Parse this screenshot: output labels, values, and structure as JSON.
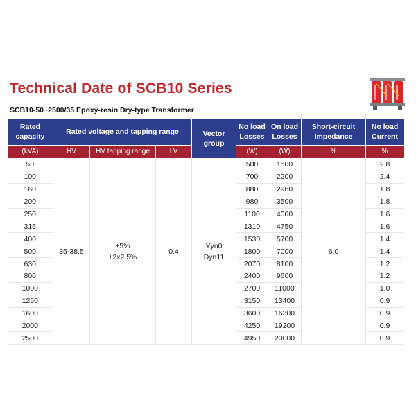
{
  "title": "Technical Date of SCB10 Series",
  "subtitle": "SCB10-50~2500/35  Epoxy-resin Dry-type Transformer",
  "product_image": "dry-type-transformer-image",
  "colors": {
    "title": "#c0262c",
    "header_blue": "#2d3f8c",
    "header_red": "#a52330"
  },
  "headers": {
    "rated_capacity": "Rated capacity",
    "rated_voltage": "Rated voltage and tapping range",
    "vector_group": "Vector group",
    "no_load_losses": "No load Losses",
    "on_load_losses": "On load Losses",
    "impedance": "Short-circuit Impedance",
    "no_load_current": "No load Current"
  },
  "units": {
    "capacity": "(kVA)",
    "hv": "HV",
    "hv_tapping": "HV tapping range",
    "lv": "LV",
    "no_load_losses": "(W)",
    "on_load_losses": "(W)",
    "impedance": "%",
    "current": "%"
  },
  "merged": {
    "hv": "35-38.5",
    "hv_tapping_1": "±5%",
    "hv_tapping_2": "±2x2.5%",
    "lv": "0.4",
    "vector_1": "Yyn0",
    "vector_2": "Dyn11",
    "impedance": "6.0"
  },
  "rows": [
    {
      "capacity": "50",
      "no_load": "500",
      "on_load": "1500",
      "current": "2.8"
    },
    {
      "capacity": "100",
      "no_load": "700",
      "on_load": "2200",
      "current": "2.4"
    },
    {
      "capacity": "160",
      "no_load": "880",
      "on_load": "2960",
      "current": "1.8"
    },
    {
      "capacity": "200",
      "no_load": "980",
      "on_load": "3500",
      "current": "1.8"
    },
    {
      "capacity": "250",
      "no_load": "1100",
      "on_load": "4000",
      "current": "1.6"
    },
    {
      "capacity": "315",
      "no_load": "1310",
      "on_load": "4750",
      "current": "1.6"
    },
    {
      "capacity": "400",
      "no_load": "1530",
      "on_load": "5700",
      "current": "1.4"
    },
    {
      "capacity": "500",
      "no_load": "1800",
      "on_load": "7000",
      "current": "1.4"
    },
    {
      "capacity": "630",
      "no_load": "2070",
      "on_load": "8100",
      "current": "1.2"
    },
    {
      "capacity": "800",
      "no_load": "2400",
      "on_load": "9600",
      "current": "1.2"
    },
    {
      "capacity": "1000",
      "no_load": "2700",
      "on_load": "11000",
      "current": "1.0"
    },
    {
      "capacity": "1250",
      "no_load": "3150",
      "on_load": "13400",
      "current": "0.9"
    },
    {
      "capacity": "1600",
      "no_load": "3600",
      "on_load": "16300",
      "current": "0.9"
    },
    {
      "capacity": "2000",
      "no_load": "4250",
      "on_load": "19200",
      "current": "0.9"
    },
    {
      "capacity": "2500",
      "no_load": "4950",
      "on_load": "23000",
      "current": "0.9"
    }
  ]
}
